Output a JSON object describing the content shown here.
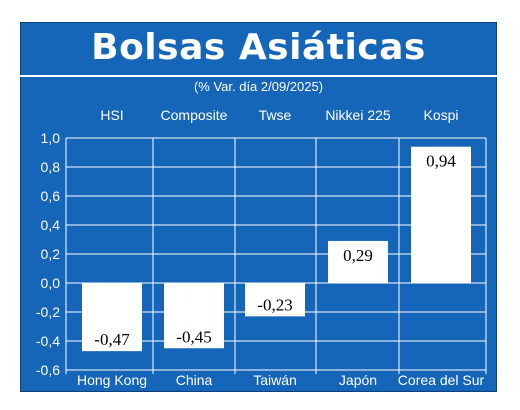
{
  "chart_data": {
    "type": "bar",
    "title": "Bolsas Asiáticas",
    "subtitle": "(% Var. día  2/09/2025)",
    "index_names": [
      "HSI",
      "Composite",
      "Twse",
      "Nikkei 225",
      "Kospi"
    ],
    "categories": [
      "Hong Kong",
      "China",
      "Taiwán",
      "Japón",
      "Corea del Sur"
    ],
    "values": [
      -0.47,
      -0.45,
      -0.23,
      0.29,
      0.94
    ],
    "value_labels": [
      "-0,47",
      "-0,45",
      "-0,23",
      "0,29",
      "0,94"
    ],
    "yticks": [
      "1,0",
      "0,8",
      "0,6",
      "0,4",
      "0,2",
      "0,0",
      "-0,2",
      "-0,4",
      "-0,6"
    ],
    "ylim": [
      -0.6,
      1.0
    ],
    "grid": true,
    "colors": {
      "background": "#1565b8",
      "bars": "#ffffff",
      "gridlines": "#ffffff",
      "text": "#ffffff"
    }
  }
}
